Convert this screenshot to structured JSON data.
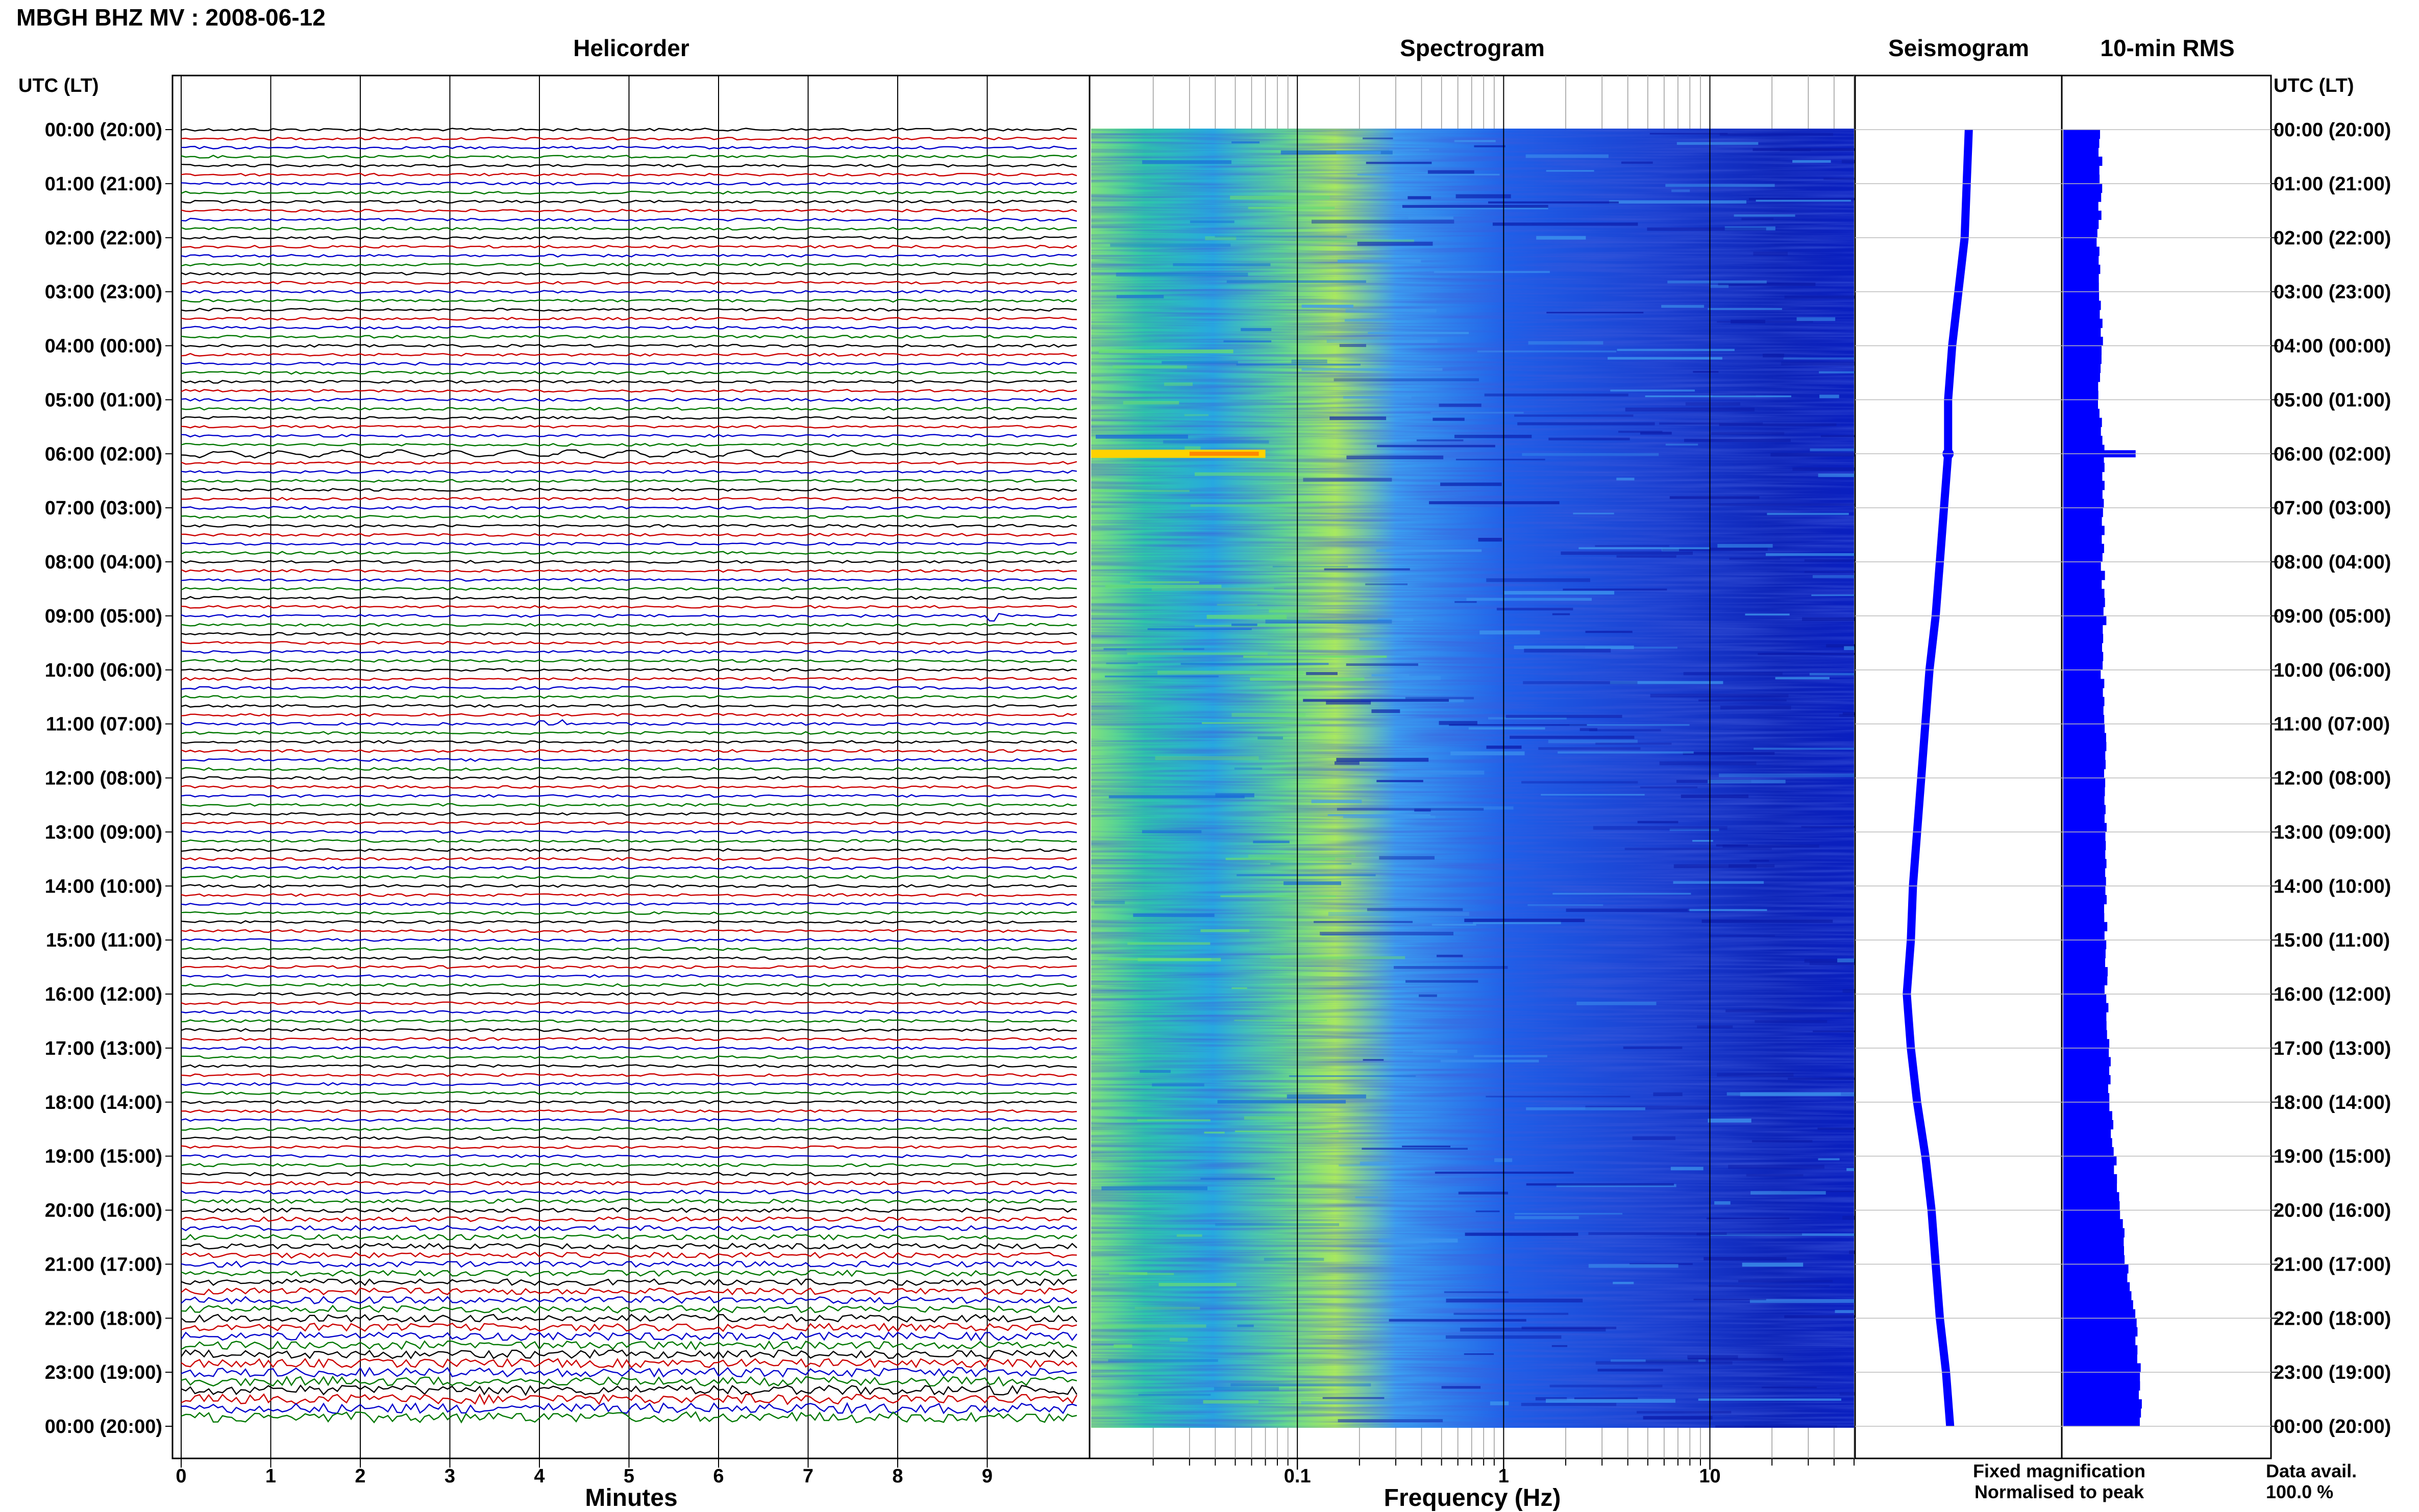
{
  "header": {
    "title": "MBGH BHZ MV : 2008-06-12"
  },
  "panels": {
    "helicorder": "Helicorder",
    "spectrogram": "Spectrogram",
    "seismogram": "Seismogram",
    "rms": "10-min RMS"
  },
  "axis_labels": {
    "time_left": "UTC (LT)",
    "time_right": "UTC (LT)",
    "minutes": "Minutes",
    "frequency": "Frequency (Hz)"
  },
  "time_ticks": [
    "00:00 (20:00)",
    "01:00 (21:00)",
    "02:00 (22:00)",
    "03:00 (23:00)",
    "04:00 (00:00)",
    "05:00 (01:00)",
    "06:00 (02:00)",
    "07:00 (03:00)",
    "08:00 (04:00)",
    "09:00 (05:00)",
    "10:00 (06:00)",
    "11:00 (07:00)",
    "12:00 (08:00)",
    "13:00 (09:00)",
    "14:00 (10:00)",
    "15:00 (11:00)",
    "16:00 (12:00)",
    "17:00 (13:00)",
    "18:00 (14:00)",
    "19:00 (15:00)",
    "20:00 (16:00)",
    "21:00 (17:00)",
    "22:00 (18:00)",
    "23:00 (19:00)",
    "00:00 (20:00)"
  ],
  "minute_ticks": [
    "0",
    "1",
    "2",
    "3",
    "4",
    "5",
    "6",
    "7",
    "8",
    "9"
  ],
  "frequency_ticks": [
    "0.1",
    "1",
    "10"
  ],
  "legend": {
    "fixed": "Fixed magnification",
    "normalised": "Normalised to peak",
    "fixed_color": "#0000ff",
    "normalised_color": "#ff0000"
  },
  "availability": {
    "label": "Data avail.",
    "value": "100.0 %"
  },
  "colors": {
    "trace_cycle": [
      "#000000",
      "#cc0000",
      "#0000cc",
      "#007700"
    ],
    "spectrogram_low": "#00008b",
    "spectrogram_high": "#ffff00",
    "seismogram": "#0000ff",
    "rms": "#0000ff"
  },
  "chart_data": [
    {
      "type": "line",
      "panel": "Helicorder",
      "x_unit": "minutes",
      "xlim": [
        0,
        10
      ],
      "ylim_hours": [
        0,
        24
      ],
      "lines_per_hour": 6,
      "line_count": 144,
      "events": [
        {
          "hour": 6.0,
          "start_min": 0,
          "end_min": 7.5,
          "note": "long-period oscillation"
        },
        {
          "hour": 9.0,
          "start_min": 9.0,
          "end_min": 9.2
        },
        {
          "hour": 11.0,
          "start_min": 4.0,
          "end_min": 4.3
        }
      ]
    },
    {
      "type": "heatmap",
      "panel": "Spectrogram",
      "x_scale": "log",
      "xlim": [
        0.01,
        50
      ],
      "xlabel": "Frequency (Hz)",
      "ylim_hours": [
        0,
        24
      ],
      "peak_band_hz": [
        0.2,
        0.5
      ],
      "event": {
        "hour": 6.0,
        "freq_range_hz": [
          0.01,
          0.07
        ]
      }
    },
    {
      "type": "line",
      "panel": "Seismogram",
      "hours": [
        0,
        1,
        2,
        3,
        4,
        5,
        6,
        7,
        8,
        9,
        10,
        11,
        12,
        13,
        14,
        15,
        16,
        17,
        18,
        19,
        20,
        21,
        22,
        23,
        24
      ],
      "offset": [
        0.55,
        0.54,
        0.53,
        0.5,
        0.47,
        0.45,
        0.45,
        0.43,
        0.41,
        0.39,
        0.36,
        0.34,
        0.32,
        0.3,
        0.28,
        0.27,
        0.25,
        0.27,
        0.3,
        0.34,
        0.37,
        0.39,
        0.41,
        0.44,
        0.46
      ]
    },
    {
      "type": "bar",
      "panel": "10-min RMS",
      "orientation": "horizontal",
      "hours": [
        0,
        1,
        2,
        3,
        4,
        5,
        6,
        7,
        8,
        9,
        10,
        11,
        12,
        13,
        14,
        15,
        16,
        17,
        18,
        19,
        20,
        21,
        22,
        23,
        24
      ],
      "values": [
        0.18,
        0.18,
        0.17,
        0.18,
        0.19,
        0.17,
        0.2,
        0.19,
        0.19,
        0.2,
        0.19,
        0.2,
        0.2,
        0.21,
        0.21,
        0.2,
        0.21,
        0.22,
        0.23,
        0.25,
        0.28,
        0.31,
        0.35,
        0.37,
        0.38
      ],
      "spike": {
        "hour": 6.0,
        "value": 0.35
      }
    }
  ]
}
